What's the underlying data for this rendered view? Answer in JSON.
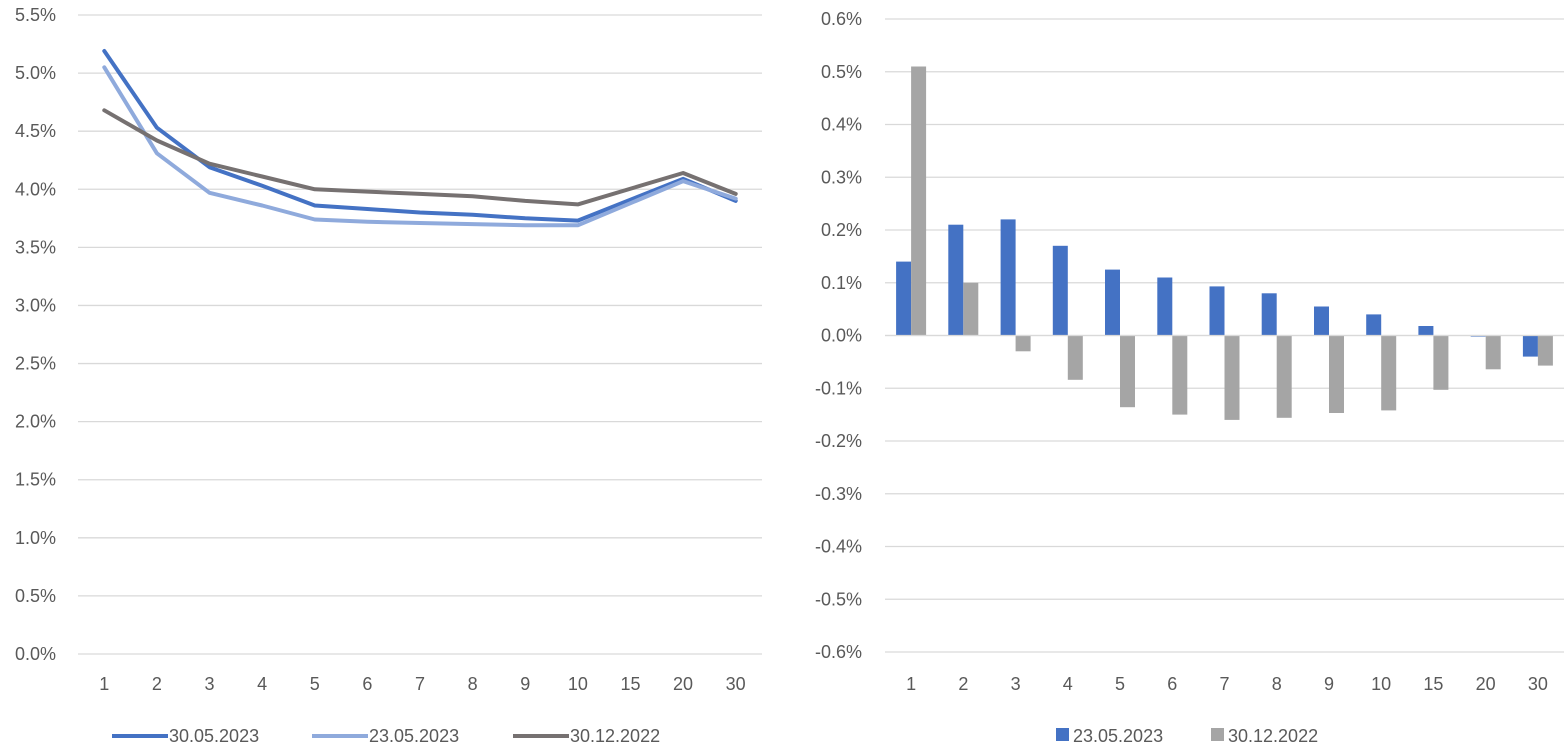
{
  "chart_data": [
    {
      "type": "line",
      "title": "",
      "xlabel": "",
      "ylabel": "",
      "categories": [
        "1",
        "2",
        "3",
        "4",
        "5",
        "6",
        "7",
        "8",
        "9",
        "10",
        "15",
        "20",
        "30"
      ],
      "ylim": [
        0,
        5.5
      ],
      "y_ticks": [
        "0.0%",
        "0.5%",
        "1.0%",
        "1.5%",
        "2.0%",
        "2.5%",
        "3.0%",
        "3.5%",
        "4.0%",
        "4.5%",
        "5.0%",
        "5.5%"
      ],
      "grid": true,
      "legend_position": "bottom",
      "series": [
        {
          "name": "30.05.2023",
          "color": "#4472C4",
          "values": [
            5.19,
            4.53,
            4.19,
            4.03,
            3.86,
            3.83,
            3.8,
            3.78,
            3.75,
            3.73,
            null,
            4.09,
            3.9
          ]
        },
        {
          "name": "23.05.2023",
          "color": "#8FAADC",
          "values": [
            5.05,
            4.31,
            3.97,
            3.86,
            3.74,
            3.72,
            3.71,
            3.7,
            3.69,
            3.69,
            null,
            4.07,
            3.92
          ]
        },
        {
          "name": "30.12.2022",
          "color": "#767171",
          "values": [
            4.68,
            4.42,
            4.22,
            4.11,
            4.0,
            3.98,
            3.96,
            3.94,
            3.9,
            3.87,
            null,
            4.14,
            3.96
          ]
        }
      ]
    },
    {
      "type": "bar",
      "title": "",
      "xlabel": "",
      "ylabel": "",
      "categories": [
        "1",
        "2",
        "3",
        "4",
        "5",
        "6",
        "7",
        "8",
        "9",
        "10",
        "15",
        "20",
        "30"
      ],
      "ylim": [
        -0.6,
        0.6
      ],
      "y_ticks": [
        "-0.6%",
        "-0.5%",
        "-0.4%",
        "-0.3%",
        "-0.2%",
        "-0.1%",
        "0.0%",
        "0.1%",
        "0.2%",
        "0.3%",
        "0.4%",
        "0.5%",
        "0.6%"
      ],
      "grid": true,
      "legend_position": "bottom",
      "series": [
        {
          "name": "23.05.2023",
          "color": "#4472C4",
          "values": [
            0.14,
            0.21,
            0.22,
            0.17,
            0.125,
            0.11,
            0.093,
            0.08,
            0.055,
            0.04,
            0.018,
            -0.002,
            -0.04
          ]
        },
        {
          "name": "30.12.2022",
          "color": "#A5A5A5",
          "values": [
            0.51,
            0.1,
            -0.03,
            -0.084,
            -0.136,
            -0.15,
            -0.16,
            -0.156,
            -0.147,
            -0.142,
            -0.103,
            -0.064,
            -0.057
          ]
        }
      ]
    }
  ]
}
